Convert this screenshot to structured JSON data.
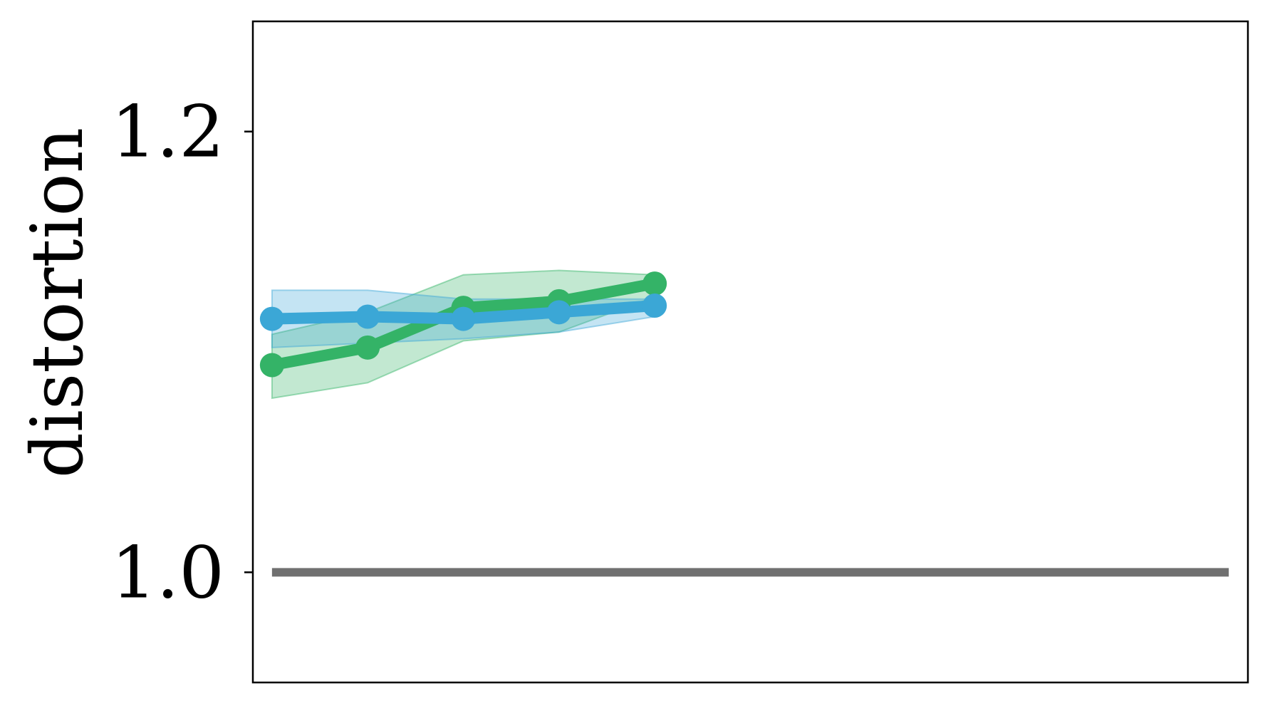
{
  "chart_data": {
    "type": "line",
    "title": "",
    "xlabel": "",
    "ylabel": "distortion",
    "x": [
      1,
      2,
      3,
      4,
      5
    ],
    "xlim": [
      0.8,
      11.2
    ],
    "ylim": [
      0.95,
      1.25
    ],
    "yticks": [
      1.0,
      1.2
    ],
    "ytick_labels": [
      "1.0",
      "1.2"
    ],
    "grid": false,
    "legend": "none",
    "reference_line": {
      "y": 1.0,
      "x_range": [
        1,
        11
      ],
      "color": "#707070"
    },
    "series": [
      {
        "color": "#34b367",
        "values": [
          1.094,
          1.102,
          1.12,
          1.123,
          1.131
        ],
        "lower": [
          1.079,
          1.086,
          1.105,
          1.109,
          1.125
        ],
        "upper": [
          1.108,
          1.118,
          1.135,
          1.137,
          1.135
        ]
      },
      {
        "color": "#3ba7d6",
        "values": [
          1.115,
          1.116,
          1.115,
          1.118,
          1.121
        ],
        "lower": [
          1.102,
          1.104,
          1.106,
          1.109,
          1.116
        ],
        "upper": [
          1.128,
          1.128,
          1.124,
          1.124,
          1.124
        ]
      }
    ]
  }
}
